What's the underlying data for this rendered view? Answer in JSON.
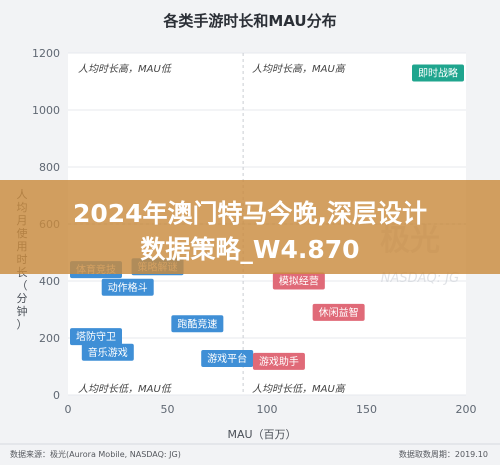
{
  "chart_data": {
    "type": "scatter",
    "title": "各类手游时长和MAU分布",
    "xlabel": "MAU（百万）",
    "ylabel": "人均月使用时长（分钟）",
    "xlim": [
      0,
      200
    ],
    "ylim": [
      0,
      1200
    ],
    "x_ticks": [
      "0",
      "50",
      "100",
      "150",
      "200"
    ],
    "y_ticks": [
      "0",
      "200",
      "400",
      "600",
      "800",
      "1000",
      "1200"
    ],
    "quadrant_split": {
      "x": 88,
      "y": 600
    },
    "quadrant_labels": {
      "top_left": "人均时长高，MAU低",
      "top_right": "人均时长高，MAU高",
      "bottom_left": "人均时长低，MAU低",
      "bottom_right": "人均时长低，MAU高"
    },
    "points": [
      {
        "label": "即时战略",
        "x": 196,
        "y": 1130,
        "color": "#1fa58e"
      },
      {
        "label": "体育竞技",
        "x": 8,
        "y": 440,
        "color": "#3f8fd6"
      },
      {
        "label": "动作格斗",
        "x": 30,
        "y": 378,
        "color": "#3f8fd6"
      },
      {
        "label": "策略解谜",
        "x": 45,
        "y": 450,
        "color": "#3f8fd6"
      },
      {
        "label": "模拟经营",
        "x": 116,
        "y": 400,
        "color": "#e06a78"
      },
      {
        "label": "休闲益智",
        "x": 136,
        "y": 290,
        "color": "#e06a78"
      },
      {
        "label": "跑酷竞速",
        "x": 65,
        "y": 250,
        "color": "#3f8fd6"
      },
      {
        "label": "塔防守卫",
        "x": 13,
        "y": 205,
        "color": "#3f8fd6"
      },
      {
        "label": "音乐游戏",
        "x": 20,
        "y": 150,
        "color": "#3f8fd6"
      },
      {
        "label": "游戏平台",
        "x": 80,
        "y": 128,
        "color": "#3f8fd6"
      },
      {
        "label": "游戏助手",
        "x": 106,
        "y": 118,
        "color": "#e06a78"
      }
    ]
  },
  "footer": {
    "source": "数据来源：极光(Aurora Mobile, NASDAQ: JG)",
    "date": "数据取数周期：2019.10"
  },
  "overlay": {
    "line1": "2024年澳门特马今晚,深层设计",
    "line2": "数据策略_W4.870"
  },
  "watermark": {
    "cn": "极光",
    "en": "NASDAQ: JG"
  }
}
